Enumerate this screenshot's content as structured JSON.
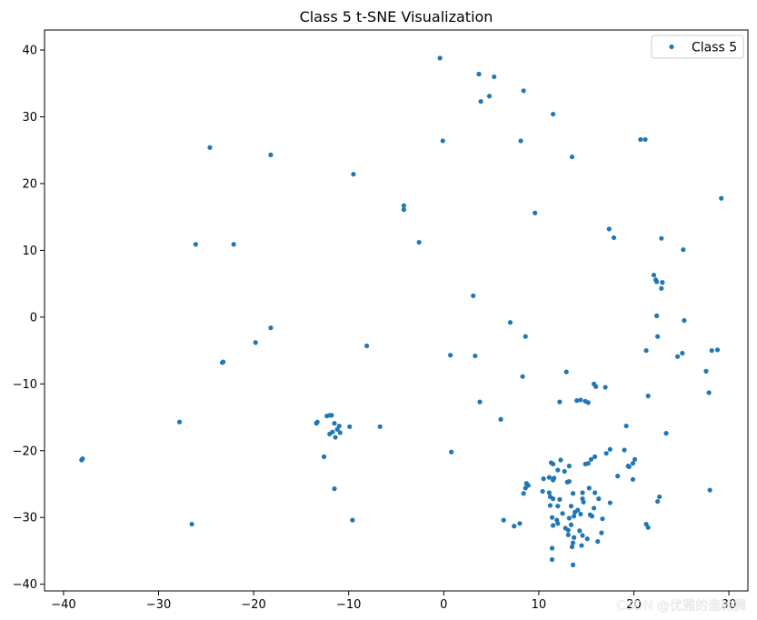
{
  "chart_data": {
    "type": "scatter",
    "title": "Class 5 t-SNE Visualization",
    "xlabel": "",
    "ylabel": "",
    "xlim": [
      -42,
      32
    ],
    "ylim": [
      -41,
      43
    ],
    "x_ticks": [
      -40,
      -30,
      -20,
      -10,
      0,
      10,
      20,
      30
    ],
    "y_ticks": [
      -40,
      -30,
      -20,
      -10,
      0,
      10,
      20,
      30,
      40
    ],
    "grid": false,
    "legend": {
      "placement": "top-right",
      "entries": [
        "Class 5"
      ]
    },
    "series": [
      {
        "name": "Class 5",
        "color": "#1f77b4",
        "points": [
          [
            -0.4,
            38.8
          ],
          [
            3.7,
            36.4
          ],
          [
            5.3,
            36.0
          ],
          [
            3.9,
            32.3
          ],
          [
            4.8,
            33.1
          ],
          [
            8.4,
            33.9
          ],
          [
            11.5,
            30.4
          ],
          [
            -0.1,
            26.4
          ],
          [
            8.1,
            26.4
          ],
          [
            13.5,
            24.0
          ],
          [
            20.7,
            26.6
          ],
          [
            21.2,
            26.6
          ],
          [
            -24.6,
            25.4
          ],
          [
            -18.2,
            24.3
          ],
          [
            -9.5,
            21.4
          ],
          [
            -4.2,
            16.7
          ],
          [
            -4.2,
            16.1
          ],
          [
            9.6,
            15.6
          ],
          [
            29.2,
            17.8
          ],
          [
            -26.1,
            10.9
          ],
          [
            -22.1,
            10.9
          ],
          [
            -2.6,
            11.2
          ],
          [
            17.4,
            13.2
          ],
          [
            17.9,
            11.9
          ],
          [
            22.9,
            11.8
          ],
          [
            25.2,
            10.1
          ],
          [
            22.1,
            6.3
          ],
          [
            22.3,
            5.6
          ],
          [
            22.4,
            5.3
          ],
          [
            23.0,
            5.2
          ],
          [
            22.9,
            4.3
          ],
          [
            3.1,
            3.2
          ],
          [
            22.4,
            0.2
          ],
          [
            25.3,
            -0.5
          ],
          [
            7.0,
            -0.8
          ],
          [
            -18.2,
            -1.6
          ],
          [
            8.6,
            -2.9
          ],
          [
            22.5,
            -2.9
          ],
          [
            -19.8,
            -3.8
          ],
          [
            -8.1,
            -4.3
          ],
          [
            21.3,
            -5.0
          ],
          [
            28.2,
            -5.0
          ],
          [
            28.8,
            -4.9
          ],
          [
            25.1,
            -5.4
          ],
          [
            24.6,
            -5.9
          ],
          [
            0.7,
            -5.7
          ],
          [
            3.3,
            -5.8
          ],
          [
            -23.2,
            -6.7
          ],
          [
            -23.3,
            -6.8
          ],
          [
            27.6,
            -8.1
          ],
          [
            12.9,
            -8.2
          ],
          [
            8.3,
            -8.9
          ],
          [
            15.8,
            -10.0
          ],
          [
            16.0,
            -10.4
          ],
          [
            17.0,
            -10.5
          ],
          [
            27.9,
            -11.3
          ],
          [
            21.5,
            -11.8
          ],
          [
            3.8,
            -12.7
          ],
          [
            12.2,
            -12.7
          ],
          [
            14.0,
            -12.5
          ],
          [
            14.4,
            -12.4
          ],
          [
            14.9,
            -12.6
          ],
          [
            15.2,
            -12.8
          ],
          [
            -12.0,
            -14.7
          ],
          [
            -12.3,
            -14.8
          ],
          [
            -11.8,
            -14.7
          ],
          [
            -13.3,
            -15.7
          ],
          [
            -13.4,
            -15.9
          ],
          [
            6.0,
            -15.3
          ],
          [
            -27.8,
            -15.7
          ],
          [
            -11.5,
            -15.9
          ],
          [
            -11.0,
            -16.3
          ],
          [
            -9.9,
            -16.4
          ],
          [
            -6.7,
            -16.4
          ],
          [
            -11.2,
            -16.8
          ],
          [
            -11.7,
            -17.2
          ],
          [
            -12.0,
            -17.5
          ],
          [
            -10.9,
            -17.3
          ],
          [
            -11.4,
            -18.0
          ],
          [
            23.4,
            -17.4
          ],
          [
            19.2,
            -16.3
          ],
          [
            17.5,
            -19.8
          ],
          [
            17.1,
            -20.4
          ],
          [
            0.8,
            -20.2
          ],
          [
            -12.6,
            -20.9
          ],
          [
            19.0,
            -19.9
          ],
          [
            20.1,
            -21.3
          ],
          [
            19.9,
            -21.9
          ],
          [
            19.4,
            -22.3
          ],
          [
            19.5,
            -22.4
          ],
          [
            15.9,
            -20.9
          ],
          [
            15.5,
            -21.3
          ],
          [
            12.3,
            -21.4
          ],
          [
            11.3,
            -21.8
          ],
          [
            11.5,
            -22.0
          ],
          [
            15.2,
            -21.9
          ],
          [
            14.9,
            -22.0
          ],
          [
            13.2,
            -22.3
          ],
          [
            12.0,
            -22.9
          ],
          [
            12.7,
            -23.1
          ],
          [
            11.1,
            -24.0
          ],
          [
            10.5,
            -24.2
          ],
          [
            11.6,
            -24.1
          ],
          [
            11.5,
            -24.4
          ],
          [
            13.0,
            -24.7
          ],
          [
            13.2,
            -24.6
          ],
          [
            18.3,
            -23.8
          ],
          [
            19.9,
            -24.3
          ],
          [
            8.7,
            -24.9
          ],
          [
            8.9,
            -25.2
          ],
          [
            8.6,
            -25.6
          ],
          [
            -38.0,
            -21.2
          ],
          [
            -38.1,
            -21.4
          ],
          [
            -11.5,
            -25.7
          ],
          [
            15.3,
            -25.6
          ],
          [
            10.4,
            -26.1
          ],
          [
            11.1,
            -26.3
          ],
          [
            13.6,
            -26.4
          ],
          [
            14.6,
            -26.3
          ],
          [
            15.9,
            -26.3
          ],
          [
            8.4,
            -26.4
          ],
          [
            11.2,
            -26.9
          ],
          [
            11.5,
            -27.2
          ],
          [
            12.2,
            -27.3
          ],
          [
            14.6,
            -27.2
          ],
          [
            16.3,
            -27.2
          ],
          [
            22.7,
            -26.9
          ],
          [
            22.5,
            -27.6
          ],
          [
            14.7,
            -27.7
          ],
          [
            17.5,
            -27.8
          ],
          [
            11.2,
            -28.2
          ],
          [
            12.0,
            -28.3
          ],
          [
            13.4,
            -28.3
          ],
          [
            15.8,
            -28.6
          ],
          [
            14.1,
            -28.9
          ],
          [
            13.8,
            -29.2
          ],
          [
            12.5,
            -29.4
          ],
          [
            14.4,
            -29.5
          ],
          [
            15.4,
            -29.6
          ],
          [
            15.6,
            -29.8
          ],
          [
            13.7,
            -29.8
          ],
          [
            11.4,
            -30.0
          ],
          [
            13.2,
            -30.1
          ],
          [
            11.9,
            -30.4
          ],
          [
            12.0,
            -30.9
          ],
          [
            16.7,
            -30.2
          ],
          [
            6.3,
            -30.4
          ],
          [
            -9.6,
            -30.4
          ],
          [
            -26.5,
            -31.0
          ],
          [
            8.0,
            -30.9
          ],
          [
            7.4,
            -31.3
          ],
          [
            11.5,
            -31.2
          ],
          [
            13.4,
            -31.1
          ],
          [
            12.8,
            -31.6
          ],
          [
            13.1,
            -31.9
          ],
          [
            21.3,
            -31.0
          ],
          [
            21.5,
            -31.5
          ],
          [
            16.6,
            -32.3
          ],
          [
            14.3,
            -32.0
          ],
          [
            13.1,
            -32.6
          ],
          [
            14.6,
            -32.7
          ],
          [
            13.7,
            -33.0
          ],
          [
            15.1,
            -33.2
          ],
          [
            16.2,
            -33.6
          ],
          [
            13.6,
            -33.8
          ],
          [
            14.5,
            -34.2
          ],
          [
            13.5,
            -34.4
          ],
          [
            11.4,
            -34.6
          ],
          [
            11.4,
            -36.3
          ],
          [
            13.6,
            -37.1
          ],
          [
            28.0,
            -25.9
          ]
        ]
      }
    ]
  },
  "watermark": {
    "text": "CSDN @优雅的造轮狮"
  }
}
